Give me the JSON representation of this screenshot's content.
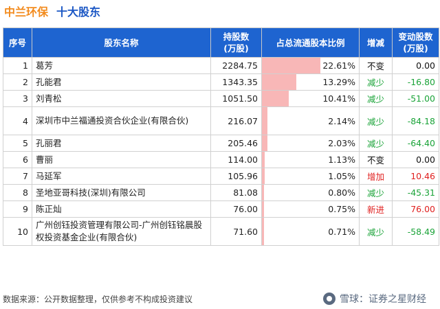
{
  "header": {
    "company": "中兰环保",
    "subtitle": "十大股东"
  },
  "table": {
    "columns": [
      "序号",
      "股东名称",
      "持股数\n(万股)",
      "占总流通股本比例",
      "增减",
      "变动股数\n(万股)"
    ],
    "rows": [
      {
        "idx": "1",
        "name": "葛芳",
        "shares": "2284.75",
        "ratio": "22.61%",
        "ratio_value": 22.61,
        "change": "不变",
        "change_color": "black",
        "delta": "0.00",
        "delta_color": "black"
      },
      {
        "idx": "2",
        "name": "孔能君",
        "shares": "1343.35",
        "ratio": "13.29%",
        "ratio_value": 13.29,
        "change": "减少",
        "change_color": "green",
        "delta": "-16.80",
        "delta_color": "green"
      },
      {
        "idx": "3",
        "name": "刘青松",
        "shares": "1051.50",
        "ratio": "10.41%",
        "ratio_value": 10.41,
        "change": "减少",
        "change_color": "green",
        "delta": "-51.00",
        "delta_color": "green"
      },
      {
        "idx": "4",
        "name": "深圳市中兰福通投资合伙企业(有限合伙)",
        "shares": "216.07",
        "ratio": "2.14%",
        "ratio_value": 2.14,
        "change": "减少",
        "change_color": "green",
        "delta": "-84.18",
        "delta_color": "green",
        "tall": true
      },
      {
        "idx": "5",
        "name": "孔丽君",
        "shares": "205.46",
        "ratio": "2.03%",
        "ratio_value": 2.03,
        "change": "减少",
        "change_color": "green",
        "delta": "-64.40",
        "delta_color": "green"
      },
      {
        "idx": "6",
        "name": "曹丽",
        "shares": "114.00",
        "ratio": "1.13%",
        "ratio_value": 1.13,
        "change": "不变",
        "change_color": "black",
        "delta": "0.00",
        "delta_color": "black"
      },
      {
        "idx": "7",
        "name": "马延军",
        "shares": "105.96",
        "ratio": "1.05%",
        "ratio_value": 1.05,
        "change": "增加",
        "change_color": "red",
        "delta": "10.46",
        "delta_color": "red"
      },
      {
        "idx": "8",
        "name": "圣地亚哥科技(深圳)有限公司",
        "shares": "81.08",
        "ratio": "0.80%",
        "ratio_value": 0.8,
        "change": "减少",
        "change_color": "green",
        "delta": "-45.31",
        "delta_color": "green"
      },
      {
        "idx": "9",
        "name": "陈正灿",
        "shares": "76.00",
        "ratio": "0.75%",
        "ratio_value": 0.75,
        "change": "新进",
        "change_color": "red",
        "delta": "76.00",
        "delta_color": "red"
      },
      {
        "idx": "10",
        "name": "广州创钰投资管理有限公司-广州创钰铭晨股权投资基金企业(有限合伙)",
        "shares": "71.60",
        "ratio": "0.71%",
        "ratio_value": 0.71,
        "change": "减少",
        "change_color": "green",
        "delta": "-58.49",
        "delta_color": "green",
        "tall": true
      }
    ],
    "ratio_max": 22.61
  },
  "footer": {
    "source": "数据来源：公开数据整理，仅供参考不构成投资建议"
  },
  "brand": {
    "text": "雪球：证券之星财经",
    "logo_icon": "snowball-logo-icon"
  },
  "colors": {
    "header_bg": "#1e64d0",
    "bar": "#f8b7b7",
    "green": "#1aa338",
    "red": "#e0201f",
    "title_orange": "#f28a1c",
    "title_blue": "#1a56c4"
  }
}
